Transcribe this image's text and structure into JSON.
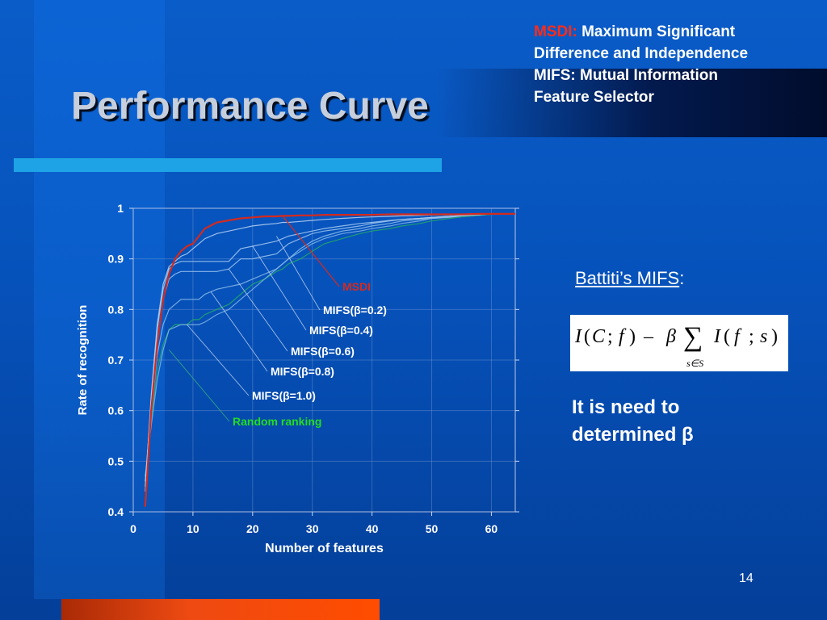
{
  "slide": {
    "title": "Performance Curve",
    "page_number": "14",
    "legend": {
      "msdi_abbr": "MSDI:",
      "msdi_text": " Maximum Significant",
      "line2": "Difference and Independence",
      "line3": "MIFS: Mutual Information",
      "line4": "Feature Selector"
    },
    "side_heading": "Battiti’s MIFS",
    "side_heading_colon": ":",
    "formula": {
      "I": "I",
      "lparen": "(",
      "C": "C",
      "semicolon": ";",
      "f": "f",
      "rparen": ")",
      "minus": "–",
      "beta": "β",
      "sum": "∑",
      "I2": "I",
      "lparen2": "(",
      "f2": "f",
      "semicolon2": ";",
      "s": "s",
      "rparen2": ")",
      "subscript": "s∈S"
    },
    "note_line1": "It is need to",
    "note_line2": "determined β",
    "colors": {
      "accent": "#1ea4e6",
      "msdi": "#d42a1e",
      "random": "#22cc22",
      "highlight": "#ff2b1a"
    }
  },
  "chart_data": {
    "type": "line",
    "xlabel": "Number of features",
    "ylabel": "Rate of recognition",
    "xlim": [
      0,
      64
    ],
    "ylim": [
      0.4,
      1.0
    ],
    "xticks": [
      "0",
      "10",
      "20",
      "30",
      "40",
      "50",
      "60"
    ],
    "yticks": [
      "0.4",
      "0.5",
      "0.6",
      "0.7",
      "0.8",
      "0.9",
      "1"
    ],
    "grid": true,
    "x": [
      0,
      2,
      3,
      4,
      5,
      6,
      7,
      8,
      9,
      10,
      11,
      12,
      14,
      16,
      18,
      20,
      22,
      24,
      25,
      26,
      28,
      30,
      32,
      35,
      38,
      40,
      43,
      45,
      48,
      50,
      53,
      55,
      58,
      60,
      64
    ],
    "series": [
      {
        "name": "MSDI",
        "color": "#d42a1e",
        "values": [
          null,
          0.41,
          0.6,
          0.73,
          0.82,
          0.87,
          0.9,
          0.915,
          0.925,
          0.93,
          0.945,
          0.96,
          0.972,
          0.976,
          0.98,
          0.982,
          0.984,
          0.984,
          0.985,
          0.985,
          0.986,
          0.986,
          0.987,
          0.987,
          0.987,
          0.987,
          0.988,
          0.988,
          0.988,
          0.988,
          0.988,
          0.988,
          0.989,
          0.989,
          0.989
        ]
      },
      {
        "name": "MIFS(β=0.2)",
        "color": "#b9d4f2",
        "values": [
          null,
          0.44,
          0.63,
          0.77,
          0.85,
          0.885,
          0.895,
          0.905,
          0.91,
          0.92,
          0.93,
          0.94,
          0.95,
          0.955,
          0.96,
          0.965,
          0.968,
          0.97,
          0.972,
          0.972,
          0.974,
          0.976,
          0.978,
          0.98,
          0.982,
          0.983,
          0.984,
          0.985,
          0.986,
          0.987,
          0.987,
          0.988,
          0.988,
          0.989,
          0.989
        ]
      },
      {
        "name": "MIFS(β=0.4)",
        "color": "#a9cdf0",
        "values": [
          null,
          0.45,
          0.62,
          0.76,
          0.84,
          0.88,
          0.89,
          0.895,
          0.895,
          0.895,
          0.895,
          0.895,
          0.895,
          0.895,
          0.92,
          0.925,
          0.93,
          0.935,
          0.94,
          0.945,
          0.95,
          0.955,
          0.96,
          0.965,
          0.97,
          0.972,
          0.976,
          0.978,
          0.98,
          0.982,
          0.984,
          0.986,
          0.988,
          0.989,
          0.989
        ]
      },
      {
        "name": "MIFS(β=0.6)",
        "color": "#9cc5ee",
        "values": [
          null,
          0.46,
          0.61,
          0.74,
          0.82,
          0.86,
          0.87,
          0.875,
          0.875,
          0.875,
          0.875,
          0.875,
          0.875,
          0.88,
          0.9,
          0.9,
          0.905,
          0.91,
          0.92,
          0.93,
          0.94,
          0.95,
          0.955,
          0.96,
          0.965,
          0.97,
          0.975,
          0.978,
          0.98,
          0.982,
          0.984,
          0.986,
          0.988,
          0.989,
          0.989
        ]
      },
      {
        "name": "MIFS(β=0.8)",
        "color": "#8dbde9",
        "values": [
          null,
          0.46,
          0.59,
          0.71,
          0.77,
          0.8,
          0.81,
          0.82,
          0.82,
          0.82,
          0.82,
          0.83,
          0.84,
          0.845,
          0.85,
          0.86,
          0.87,
          0.88,
          0.89,
          0.9,
          0.92,
          0.935,
          0.945,
          0.955,
          0.96,
          0.965,
          0.97,
          0.975,
          0.978,
          0.98,
          0.983,
          0.985,
          0.987,
          0.989,
          0.989
        ]
      },
      {
        "name": "MIFS(β=1.0)",
        "color": "#80b6e6",
        "values": [
          null,
          0.47,
          0.57,
          0.66,
          0.72,
          0.76,
          0.765,
          0.77,
          0.77,
          0.77,
          0.77,
          0.775,
          0.79,
          0.8,
          0.82,
          0.84,
          0.86,
          0.88,
          0.89,
          0.9,
          0.915,
          0.93,
          0.94,
          0.95,
          0.955,
          0.96,
          0.965,
          0.97,
          0.975,
          0.98,
          0.982,
          0.985,
          0.987,
          0.989,
          0.989
        ]
      },
      {
        "name": "Random ranking",
        "color": "#22aa66",
        "values": [
          null,
          0.45,
          0.58,
          0.68,
          0.73,
          0.76,
          0.77,
          0.77,
          0.77,
          0.78,
          0.78,
          0.79,
          0.8,
          0.81,
          0.83,
          0.85,
          0.86,
          0.875,
          0.88,
          0.89,
          0.9,
          0.915,
          0.93,
          0.94,
          0.95,
          0.955,
          0.96,
          0.965,
          0.97,
          0.975,
          0.98,
          0.983,
          0.986,
          0.988,
          0.989
        ]
      }
    ],
    "annotations": [
      {
        "text": "MSDI",
        "color": "#d42a1e",
        "anchor_x": 25,
        "anchor_y": 0.985
      },
      {
        "text": "MIFS(β=0.2)",
        "color": "#ffffff",
        "anchor_x": 24,
        "anchor_y": 0.945
      },
      {
        "text": "MIFS(β=0.4)",
        "color": "#ffffff",
        "anchor_x": 20,
        "anchor_y": 0.925
      },
      {
        "text": "MIFS(β=0.6)",
        "color": "#ffffff",
        "anchor_x": 16,
        "anchor_y": 0.88
      },
      {
        "text": "MIFS(β=0.8)",
        "color": "#ffffff",
        "anchor_x": 13,
        "anchor_y": 0.835
      },
      {
        "text": "MIFS(β=1.0)",
        "color": "#ffffff",
        "anchor_x": 9,
        "anchor_y": 0.77
      },
      {
        "text": "Random ranking",
        "color": "#22dd22",
        "anchor_x": 6,
        "anchor_y": 0.72
      }
    ]
  }
}
